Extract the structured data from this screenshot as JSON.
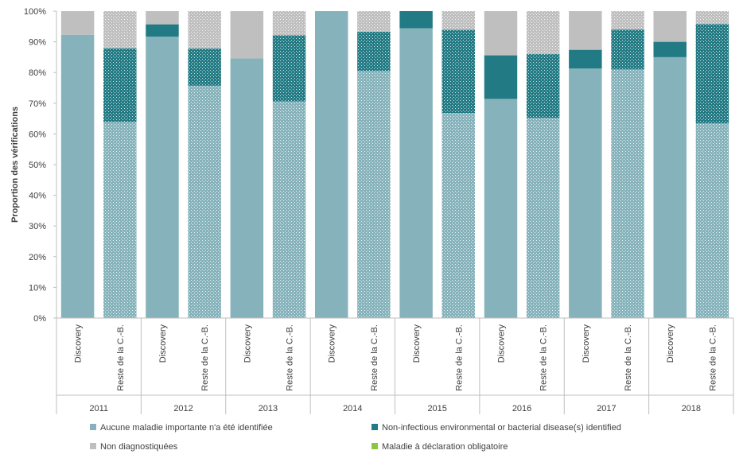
{
  "chart_data": {
    "type": "bar",
    "stacked": true,
    "title": "",
    "ylabel": "Proportion des vérifications",
    "xlabel": "",
    "ylim": [
      0,
      100
    ],
    "y_ticks": [
      "0%",
      "10%",
      "20%",
      "30%",
      "40%",
      "50%",
      "60%",
      "70%",
      "80%",
      "90%",
      "100%"
    ],
    "grid": false,
    "legend_position": "bottom",
    "years": [
      "2011",
      "2012",
      "2013",
      "2014",
      "2015",
      "2016",
      "2017",
      "2018"
    ],
    "groups": [
      "Discovery",
      "Reste de la C.-B."
    ],
    "categories": [
      "Discovery",
      "Reste de la C.-B.",
      "Discovery",
      "Reste de la C.-B.",
      "Discovery",
      "Reste de la C.-B.",
      "Discovery",
      "Reste de la C.-B.",
      "Discovery",
      "Reste de la C.-B.",
      "Discovery",
      "Reste de la C.-B.",
      "Discovery",
      "Reste de la C.-B.",
      "Discovery",
      "Reste de la C.-B."
    ],
    "series": [
      {
        "name": "Aucune maladie importante n'a été identifiée",
        "color": "#86b3bb",
        "values": [
          92.3,
          63.9,
          91.7,
          75.7,
          84.6,
          70.6,
          100,
          80.5,
          94.4,
          66.8,
          71.4,
          65.2,
          81.3,
          81.0,
          85.0,
          63.4
        ]
      },
      {
        "name": "Non-infectious environmental or bacterial disease(s) identified",
        "color": "#227b84",
        "values": [
          0,
          24.0,
          4.0,
          12.1,
          0,
          21.5,
          0,
          12.8,
          5.6,
          27.1,
          14.2,
          20.8,
          6.1,
          13.0,
          5.0,
          32.4
        ]
      },
      {
        "name": "Non diagnostiquées",
        "color": "#bfbfbf",
        "values": [
          7.7,
          12.1,
          4.3,
          12.2,
          15.4,
          7.9,
          0,
          6.7,
          0,
          6.1,
          14.4,
          14.0,
          12.6,
          6.0,
          10.0,
          4.2
        ]
      },
      {
        "name": "Maladie à déclaration obligatoire",
        "color": "#8dc63f",
        "values": [
          0,
          0,
          0,
          0,
          0,
          0,
          0,
          0,
          0,
          0,
          0,
          0,
          0,
          0,
          0,
          0
        ]
      }
    ]
  }
}
